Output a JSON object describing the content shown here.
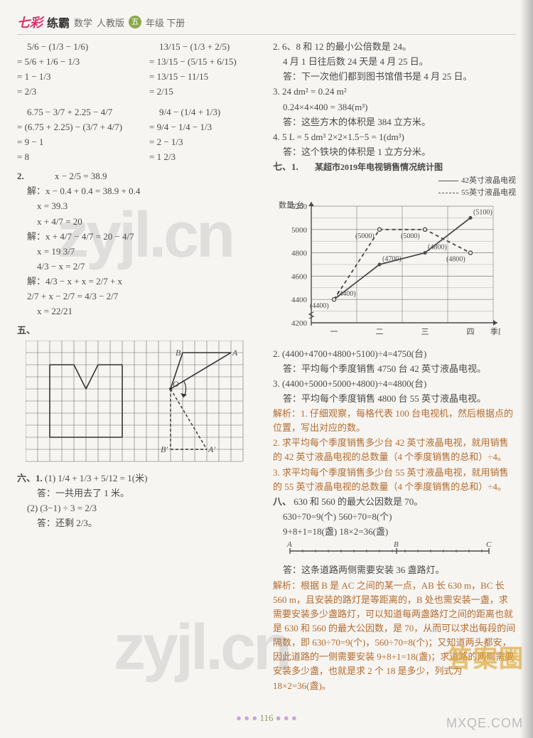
{
  "header": {
    "brand1": "七彩",
    "brand2": "练霸",
    "subject": "数学",
    "edition": "人教版",
    "grade_badge": "五",
    "grade_suffix": "年级 下册"
  },
  "left": {
    "eq_block_a": {
      "l1_left": "5/6 − (1/3 − 1/6)",
      "l1_right": "13/15 − (1/3 + 2/5)",
      "l2_left": "= 5/6 + 1/6 − 1/3",
      "l2_right": "= 13/15 − (5/15 + 6/15)",
      "l3_left": "= 1 − 1/3",
      "l3_right": "= 13/15 − 11/15",
      "l4_left": "= 2/3",
      "l4_right": "= 2/15"
    },
    "eq_block_b": {
      "l1_left": "6.75 − 3/7 + 2.25 − 4/7",
      "l1_right": "9/4 − (1/4 + 1/3)",
      "l2_left": "= (6.75 + 2.25) − (3/7 + 4/7)",
      "l2_right": "= 9/4 − 1/4 − 1/3",
      "l3_left": "= 9 − 1",
      "l3_right": "= 2 − 1/3",
      "l4_left": "= 8",
      "l4_right": "= 1 2/3"
    },
    "item2_label": "2.",
    "item2": {
      "e1": "x − 2/5 = 38.9",
      "s1": "解：x − 0.4 + 0.4 = 38.9 + 0.4",
      "s2": "x = 39.3",
      "e2": "x + 4/7 = 20",
      "s3": "解：x + 4/7 − 4/7 = 20 − 4/7",
      "s4": "x = 19 3/7",
      "e3": "4/3 − x = 2/7",
      "s5": "解：4/3 − x + x = 2/7 + x",
      "s6": "2/7 + x − 2/7 = 4/3 − 2/7",
      "s7": "x = 22/21"
    },
    "sec5": "五、",
    "grid": {
      "cols": 18,
      "rows": 10,
      "cell": 17,
      "stroke": "#6b6b6b",
      "labels": {
        "A": "A",
        "B": "B",
        "O": "O",
        "Ap": "A′",
        "Bp": "B′"
      }
    },
    "sec6": "六、1.",
    "six": {
      "l1": "(1) 1/4 + 1/3 + 5/12 = 1(米)",
      "a1": "答：一共用去了 1 米。",
      "l2": "(2) (3−1) ÷ 3 = 2/3",
      "a2": "答：还剩 2/3。"
    }
  },
  "right": {
    "q2": {
      "l1": "2. 6、8 和 12 的最小公倍数是 24。",
      "l2": "4 月 1 日往后数 24 天是 4 月 25 日。",
      "l3": "答：下一次他们都到图书馆借书是 4 月 25 日。"
    },
    "q3": {
      "l1": "3. 24 dm² = 0.24 m²",
      "l2": "0.24×4×400 = 384(m³)",
      "l3": "答：这些方木的体积是 384 立方米。"
    },
    "q4": {
      "l1": "4. 5 L = 5 dm³   2×2×1.5−5 = 1(dm³)",
      "l2": "答：这个铁块的体积是 1 立方分米。"
    },
    "sec7": "七、1.",
    "chart": {
      "title": "某超市2019年电视销售情况统计图",
      "legend_a": "42英寸液晶电视",
      "legend_b": "55英寸液晶电视",
      "y_label": "数量/台",
      "x_label": "季度",
      "x_ticks": [
        "一",
        "二",
        "三",
        "四"
      ],
      "y_min": 4200,
      "y_max": 5200,
      "y_step": 200,
      "series_a": [
        4400,
        4700,
        4800,
        5100
      ],
      "series_b": [
        4400,
        5000,
        5000,
        4800
      ],
      "point_labels_a": [
        "(4400)",
        "(4700)",
        "(4800)",
        "(5100)"
      ],
      "point_labels_b": [
        "(4400)",
        "(5000)",
        "(5000)",
        "(4800)"
      ],
      "colors": {
        "grid": "#7a7a7a",
        "axis": "#4a4a4a",
        "line_a": "#4a4a4a",
        "line_b": "#4a4a4a",
        "bg": "#f7f5f2"
      }
    },
    "q7_2": {
      "l1": "2. (4400+4700+4800+5100)÷4=4750(台)",
      "l2": "答：平均每个季度销售 4750 台 42 英寸液晶电视。"
    },
    "q7_3": {
      "l1": "3. (4400+5000+5000+4800)÷4=4800(台)",
      "l2": "答：平均每个季度销售 4800 台 55 英寸液晶电视。"
    },
    "analysis": {
      "a0": "解析：1. 仔细观察，每格代表 100 台电视机，然后根据点的位置，写出对应的数。",
      "a1": "2. 求平均每个季度销售多少台 42 英寸液晶电视，就用销售的 42 英寸液晶电视的总数量（4 个季度销售的总和）÷4。",
      "a2": "3. 求平均每个季度销售多少台 55 英寸液晶电视，就用销售的 55 英寸液晶电视的总数量（4 个季度销售的总和）÷4。"
    },
    "sec8": "八、",
    "eight": {
      "l1": "630 和 560 的最大公因数是 70。",
      "l2": "630÷70=9(个)   560÷70=8(个)",
      "l3": "9+8+1=18(盏)   18×2=36(盏)",
      "diagram_labels": {
        "A": "A",
        "B": "B",
        "C": "C"
      },
      "l4": "答：这条道路两侧需要安装 36 盏路灯。",
      "expl": "解析：根据 B 是 AC 之间的某一点，AB 长 630 m，BC 长 560 m，且安装的路灯是等距离的，B 处也需安装一盏，求需要安装多少盏路灯，可以知道每两盏路灯之间的距离也就是 630 和 560 的最大公因数，是 70，从而可以求出每段的间隔数，即 630÷70=9(个)，560÷70=8(个)；又知道两头都安，因此道路的一侧需要安装 9+8+1=18(盏)；求道路的两侧需要安装多少盏，也就是求 2 个 18 是多少，列式为 18×2=36(盏)。"
    }
  },
  "pagenum": "116",
  "watermark": "zyjl.cn",
  "stamp": "答案圈",
  "mxqe": "MXQE.COM"
}
